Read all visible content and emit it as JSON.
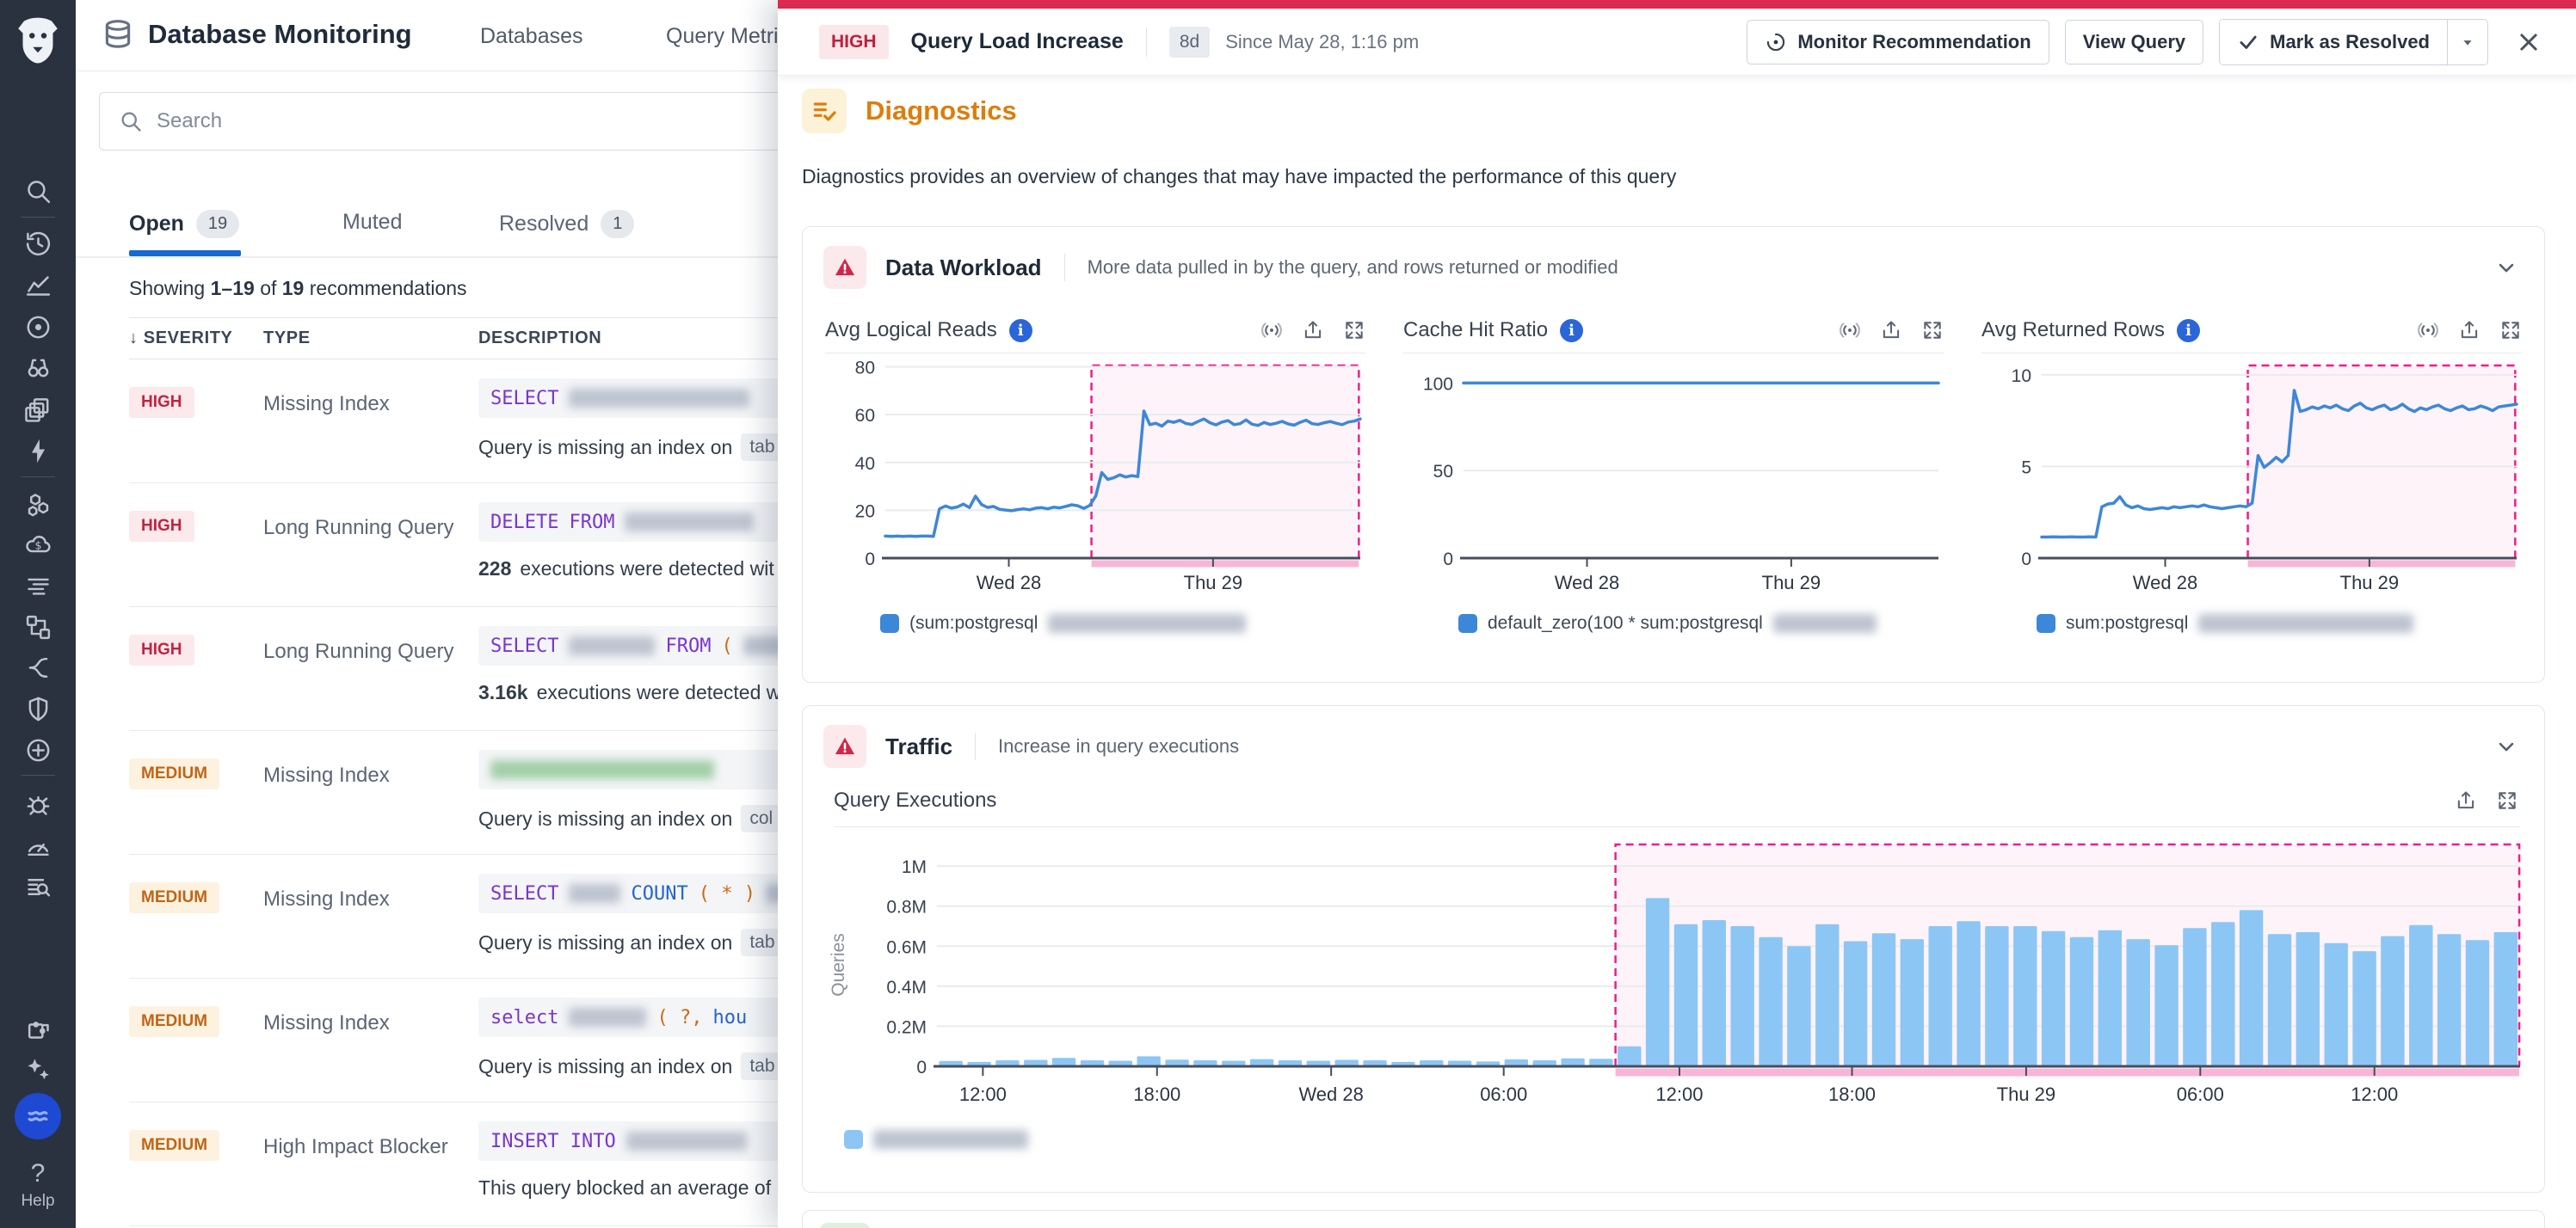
{
  "sidebar": {
    "icons": [
      "search",
      "history",
      "metrics",
      "infrastructure",
      "watchdog",
      "dashboards",
      "apm",
      "service-catalog",
      "cloud-cost",
      "logs",
      "workflows",
      "synthetics",
      "security",
      "ci-cd",
      "error-tracking",
      "profiling",
      "log-search"
    ],
    "bottom_icons": [
      "integrations",
      "ai-assist",
      "database-monitoring"
    ],
    "active_icon": "database-monitoring",
    "help": {
      "glyph": "?",
      "label": "Help"
    }
  },
  "header": {
    "app_title": "Database Monitoring",
    "tabs": [
      "Databases",
      "Query Metrics"
    ],
    "search_placeholder": "Search"
  },
  "list": {
    "tabs": [
      {
        "label": "Open",
        "count": "19",
        "active": true
      },
      {
        "label": "Muted",
        "count": ""
      },
      {
        "label": "Resolved",
        "count": "1"
      }
    ],
    "summary": {
      "pre": "Showing",
      "range": "1–19",
      "mid": "of",
      "total": "19",
      "post": "recommendations"
    },
    "columns": [
      "SEVERITY",
      "TYPE",
      "DESCRIPTION"
    ],
    "rows": [
      {
        "severity": "HIGH",
        "sev": "high",
        "type": "Missing Index",
        "code": [
          {
            "t": "SELECT",
            "c": "kw"
          },
          {
            "r": 210
          }
        ],
        "desc": [
          {
            "t": "Query is missing an index on"
          },
          {
            "chip": "tab"
          }
        ]
      },
      {
        "severity": "HIGH",
        "sev": "high",
        "type": "Long Running Query",
        "code": [
          {
            "t": "DELETE",
            "c": "kw"
          },
          {
            "t": "FROM",
            "c": "kw"
          },
          {
            "r": 150
          }
        ],
        "desc": [
          {
            "b": "228"
          },
          {
            "t": "executions were detected wit"
          }
        ]
      },
      {
        "severity": "HIGH",
        "sev": "high",
        "type": "Long Running Query",
        "code": [
          {
            "t": "SELECT",
            "c": "kw"
          },
          {
            "r": 100
          },
          {
            "t": "FROM",
            "c": "kw"
          },
          {
            "t": "(",
            "c": "pn"
          },
          {
            "r": 50
          }
        ],
        "desc": [
          {
            "b": "3.16k"
          },
          {
            "t": "executions were detected w"
          }
        ]
      },
      {
        "severity": "MEDIUM",
        "sev": "med",
        "type": "Missing Index",
        "code": [
          {
            "r": 260,
            "g": 1
          }
        ],
        "desc": [
          {
            "t": "Query is missing an index on"
          },
          {
            "chip": "col"
          }
        ]
      },
      {
        "severity": "MEDIUM",
        "sev": "med",
        "type": "Missing Index",
        "code": [
          {
            "t": "SELECT",
            "c": "kw"
          },
          {
            "r": 60
          },
          {
            "t": "COUNT",
            "c": "fn"
          },
          {
            "t": "( * )",
            "c": "pn"
          },
          {
            "r": 30
          }
        ],
        "desc": [
          {
            "t": "Query is missing an index on"
          },
          {
            "chip": "tab"
          }
        ]
      },
      {
        "severity": "MEDIUM",
        "sev": "med",
        "type": "Missing Index",
        "code": [
          {
            "t": "select",
            "c": "kw"
          },
          {
            "r": 90
          },
          {
            "t": "( ?,",
            "c": "pn"
          },
          {
            "t": "hou",
            "c": "fn"
          }
        ],
        "desc": [
          {
            "t": "Query is missing an index on"
          },
          {
            "chip": "tab"
          }
        ]
      },
      {
        "severity": "MEDIUM",
        "sev": "med",
        "type": "High Impact Blocker",
        "code": [
          {
            "t": "INSERT INTO",
            "c": "kw"
          },
          {
            "r": 140
          }
        ],
        "desc": [
          {
            "t": "This query blocked an average of"
          }
        ]
      }
    ]
  },
  "panel": {
    "severity": "HIGH",
    "title": "Query Load Increase",
    "age": "8d",
    "since": "Since May 28, 1:16 pm",
    "actions": {
      "monitor": "Monitor Recommendation",
      "view_query": "View Query",
      "resolve": "Mark as Resolved"
    },
    "diagnostics_title": "Diagnostics",
    "diagnostics_desc": "Diagnostics provides an overview of changes that may have impacted the performance of this query",
    "workload": {
      "title": "Data Workload",
      "subtitle": "More data pulled in by the query, and rows returned or modified"
    },
    "traffic": {
      "title": "Traffic",
      "subtitle": "Increase in query executions"
    }
  },
  "chart_data": [
    {
      "id": "avg_logical_reads",
      "type": "line",
      "title": "Avg Logical Reads",
      "color": "#3d87d9",
      "ylim": [
        0,
        82
      ],
      "yticks": [
        0,
        20,
        40,
        60,
        80
      ],
      "xticks": [
        {
          "f": 0.26,
          "label": "Wed 28"
        },
        {
          "f": 0.69,
          "label": "Thu 29"
        }
      ],
      "highlight": {
        "from": 0.434,
        "to": 0.997
      },
      "legend": "(sum:postgresql",
      "values": [
        9.2,
        9.1,
        9.2,
        9.1,
        9.2,
        9.1,
        9.2,
        9.2,
        9.1,
        20.6,
        21.8,
        20.9,
        21.4,
        22.6,
        21.1,
        25.9,
        22.4,
        21.2,
        21.6,
        20.4,
        20.1,
        19.8,
        20.3,
        20.6,
        20.2,
        20.9,
        21.1,
        20.6,
        21.3,
        21.0,
        21.6,
        22.3,
        21.9,
        20.8,
        22.0,
        26.0,
        35.8,
        32.9,
        33.6,
        34.8,
        33.9,
        34.5,
        34.1,
        61.5,
        55.8,
        56.4,
        55.2,
        57.3,
        56.8,
        57.6,
        56.3,
        55.9,
        57.1,
        58.2,
        56.6,
        55.7,
        56.9,
        57.5,
        55.8,
        56.2,
        57.8,
        56.0,
        55.5,
        56.7,
        55.9,
        56.4,
        57.2,
        56.1,
        55.6,
        56.8,
        57.7,
        56.2,
        55.9,
        56.6,
        57.1,
        56.4,
        55.8,
        56.9,
        57.3,
        58.2
      ]
    },
    {
      "id": "cache_hit_ratio",
      "type": "line",
      "title": "Cache Hit Ratio",
      "color": "#3d87d9",
      "ylim": [
        0,
        112
      ],
      "yticks": [
        0,
        50,
        100
      ],
      "xticks": [
        {
          "f": 0.26,
          "label": "Wed 28"
        },
        {
          "f": 0.69,
          "label": "Thu 29"
        }
      ],
      "legend": "default_zero(100 * sum:postgresql",
      "constant": 100,
      "points": 80
    },
    {
      "id": "avg_returned_rows",
      "type": "line",
      "title": "Avg Returned Rows",
      "color": "#3d87d9",
      "ylim": [
        0,
        10.7
      ],
      "yticks": [
        0,
        5,
        10
      ],
      "xticks": [
        {
          "f": 0.26,
          "label": "Wed 28"
        },
        {
          "f": 0.69,
          "label": "Thu 29"
        }
      ],
      "highlight": {
        "from": 0.434,
        "to": 0.997
      },
      "legend": "sum:postgresql",
      "values": [
        1.15,
        1.15,
        1.16,
        1.15,
        1.15,
        1.16,
        1.15,
        1.15,
        1.16,
        1.15,
        2.8,
        2.95,
        3.0,
        3.35,
        2.9,
        2.75,
        2.85,
        2.7,
        2.65,
        2.7,
        2.75,
        2.7,
        2.8,
        2.75,
        2.8,
        2.85,
        2.8,
        2.9,
        2.8,
        2.75,
        2.7,
        2.75,
        2.8,
        2.85,
        2.8,
        3.0,
        5.6,
        4.95,
        5.2,
        5.5,
        5.25,
        5.6,
        9.15,
        8.0,
        8.1,
        8.25,
        8.15,
        8.3,
        8.2,
        8.35,
        8.15,
        8.05,
        8.3,
        8.45,
        8.2,
        8.1,
        8.25,
        8.35,
        8.1,
        8.2,
        8.4,
        8.15,
        8.0,
        8.2,
        8.1,
        8.25,
        8.35,
        8.15,
        8.05,
        8.2,
        8.3,
        8.1,
        8.15,
        8.3,
        8.2,
        8.05,
        8.25,
        8.3,
        8.35,
        8.4
      ]
    },
    {
      "id": "query_executions",
      "type": "bar",
      "title": "Query Executions",
      "ylabel": "Queries",
      "bar_color": "#8cc6f5",
      "ylim": [
        0,
        1.108
      ],
      "yticks": [
        {
          "v": 0,
          "label": "0"
        },
        {
          "v": 0.2,
          "label": "0.2M"
        },
        {
          "v": 0.4,
          "label": "0.4M"
        },
        {
          "v": 0.6,
          "label": "0.6M"
        },
        {
          "v": 0.8,
          "label": "0.8M"
        },
        {
          "v": 1,
          "label": "1M"
        }
      ],
      "xticks": [
        {
          "f": 0.029,
          "label": "12:00"
        },
        {
          "f": 0.139,
          "label": "18:00"
        },
        {
          "f": 0.249,
          "label": "Wed 28"
        },
        {
          "f": 0.358,
          "label": "06:00"
        },
        {
          "f": 0.469,
          "label": "12:00"
        },
        {
          "f": 0.578,
          "label": "18:00"
        },
        {
          "f": 0.688,
          "label": "Thu 29"
        },
        {
          "f": 0.798,
          "label": "06:00"
        },
        {
          "f": 0.908,
          "label": "12:00"
        }
      ],
      "highlight": {
        "from": 0.4286,
        "to": 0.9995
      },
      "values": [
        0.027,
        0.022,
        0.03,
        0.032,
        0.042,
        0.03,
        0.028,
        0.05,
        0.033,
        0.03,
        0.028,
        0.036,
        0.03,
        0.028,
        0.032,
        0.03,
        0.022,
        0.03,
        0.028,
        0.024,
        0.035,
        0.03,
        0.04,
        0.038,
        0.1,
        0.84,
        0.71,
        0.73,
        0.7,
        0.645,
        0.6,
        0.71,
        0.625,
        0.665,
        0.635,
        0.7,
        0.725,
        0.7,
        0.7,
        0.675,
        0.645,
        0.68,
        0.635,
        0.605,
        0.69,
        0.72,
        0.78,
        0.66,
        0.67,
        0.615,
        0.575,
        0.65,
        0.705,
        0.66,
        0.63,
        0.67
      ]
    }
  ],
  "theme": {
    "red_bar": "#db2b50",
    "magenta": "#ee1d8c",
    "pink_strip": "#f8b6d6",
    "line_blue": "#3d87d9",
    "bar_blue": "#8cc6f5",
    "orange": "#dd7d0c",
    "tab_blue": "#1569cf"
  }
}
